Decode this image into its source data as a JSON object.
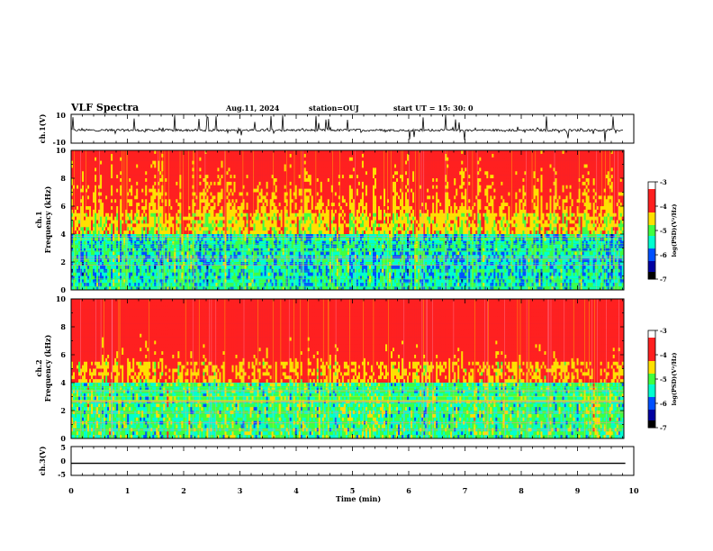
{
  "header": {
    "title": "VLF Spectra",
    "date": "Aug.11, 2024",
    "station": "station=OUJ",
    "start": "start  UT =   15: 30: 0"
  },
  "chart_data": [
    {
      "type": "line",
      "ylabel": "ch.1(V)",
      "ylim": [
        -10,
        10
      ],
      "ytick_labels": [
        "10",
        "-10"
      ],
      "description_value": "noisy waveform around -1 V with spikes"
    },
    {
      "type": "heatmap",
      "ylabel": "ch.1",
      "ylabel2": "Frequency  (kHz)",
      "ylim": [
        0,
        10
      ],
      "ytick_labels": [
        "0",
        "2",
        "4",
        "6",
        "8",
        "10"
      ],
      "colorbar": {
        "label": "log(PSD)(V²/Hz)",
        "range": [
          -7,
          -3
        ],
        "tick_labels": [
          "-3",
          "-4",
          "-5",
          "-6",
          "-7"
        ]
      }
    },
    {
      "type": "heatmap",
      "ylabel": "ch.2",
      "ylabel2": "Frequency  (kHz)",
      "ylim": [
        0,
        10
      ],
      "ytick_labels": [
        "0",
        "2",
        "4",
        "6",
        "8",
        "10"
      ],
      "colorbar": {
        "label": "log(PSD)(V²/Hz)",
        "range": [
          -7,
          -3
        ],
        "tick_labels": [
          "-3",
          "-4",
          "-5",
          "-6",
          "-7"
        ]
      }
    },
    {
      "type": "line",
      "ylabel": "ch.3(V)",
      "ylim": [
        -5,
        5
      ],
      "ytick_labels": [
        "5",
        "0",
        "-5"
      ],
      "x": [
        0,
        9.85
      ],
      "y": [
        -0.8,
        -0.8
      ]
    }
  ],
  "xaxis": {
    "label": "Time  (min)",
    "range": [
      0,
      10
    ],
    "tick_labels": [
      "0",
      "1",
      "2",
      "3",
      "4",
      "5",
      "6",
      "7",
      "8",
      "9",
      "10"
    ]
  },
  "colors": {
    "low": "#00007f",
    "blue": "#0050ff",
    "cyan": "#00ffd0",
    "green": "#40ff40",
    "yellow": "#ffe000",
    "red": "#ff2020"
  }
}
